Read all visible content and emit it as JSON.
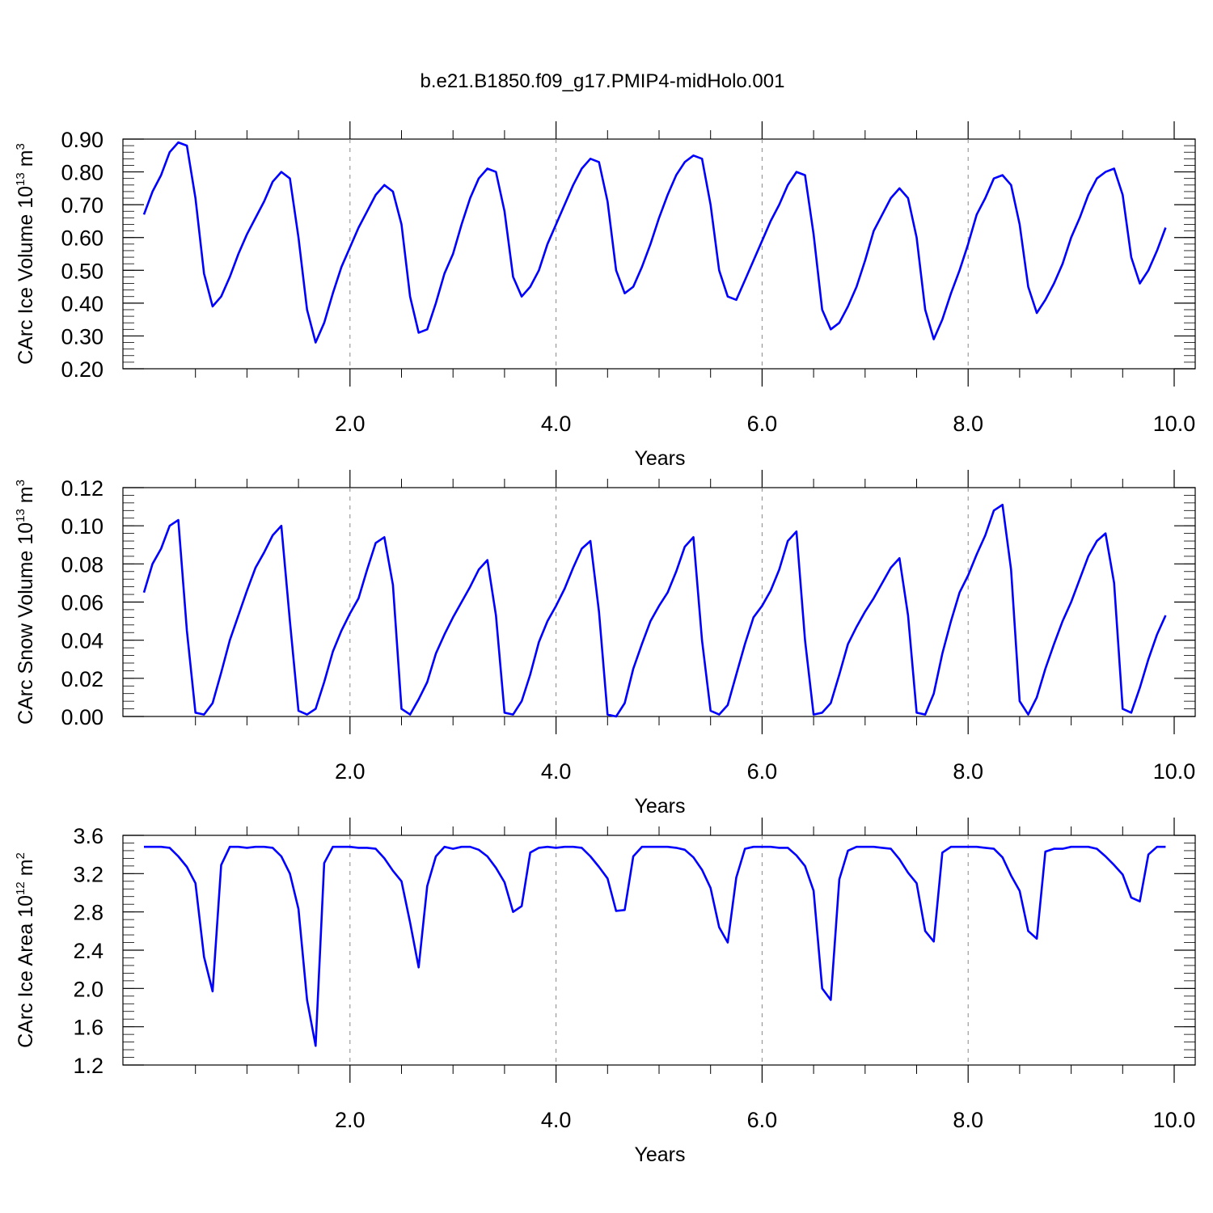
{
  "title": "b.e21.B1850.f09_g17.PMIP4-midHolo.001",
  "chart_data": [
    {
      "type": "line",
      "ylabel_main": "CArc Ice Volume 10",
      "ylabel_exp": "13",
      "ylabel_unit": " m",
      "ylabel_unit_exp": "3",
      "xlabel": "Years",
      "xlim": [
        0,
        10
      ],
      "ylim": [
        0.2,
        0.9
      ],
      "xticks": [
        2.0,
        4.0,
        6.0,
        8.0,
        10.0
      ],
      "xtick_labels": [
        "2.0",
        "4.0",
        "6.0",
        "8.0",
        "10.0"
      ],
      "yticks": [
        0.2,
        0.3,
        0.4,
        0.5,
        0.6,
        0.7,
        0.8,
        0.9
      ],
      "ytick_labels": [
        "0.20",
        "0.30",
        "0.40",
        "0.50",
        "0.60",
        "0.70",
        "0.80",
        "0.90"
      ],
      "ytick_minor_step": 0.02,
      "color": "#0000ff",
      "x_start": 0.0,
      "x_step": 0.0833333,
      "values": [
        0.67,
        0.74,
        0.79,
        0.86,
        0.89,
        0.88,
        0.72,
        0.49,
        0.39,
        0.42,
        0.48,
        0.55,
        0.61,
        0.66,
        0.71,
        0.77,
        0.8,
        0.78,
        0.6,
        0.38,
        0.28,
        0.34,
        0.43,
        0.51,
        0.57,
        0.63,
        0.68,
        0.73,
        0.76,
        0.74,
        0.64,
        0.42,
        0.31,
        0.32,
        0.4,
        0.49,
        0.55,
        0.64,
        0.72,
        0.78,
        0.81,
        0.8,
        0.68,
        0.48,
        0.42,
        0.45,
        0.5,
        0.58,
        0.64,
        0.7,
        0.76,
        0.81,
        0.84,
        0.83,
        0.71,
        0.5,
        0.43,
        0.45,
        0.51,
        0.58,
        0.66,
        0.73,
        0.79,
        0.83,
        0.85,
        0.84,
        0.7,
        0.5,
        0.42,
        0.41,
        0.47,
        0.53,
        0.59,
        0.65,
        0.7,
        0.76,
        0.8,
        0.79,
        0.61,
        0.38,
        0.32,
        0.34,
        0.39,
        0.45,
        0.53,
        0.62,
        0.67,
        0.72,
        0.75,
        0.72,
        0.6,
        0.38,
        0.29,
        0.35,
        0.43,
        0.5,
        0.58,
        0.67,
        0.72,
        0.78,
        0.79,
        0.76,
        0.64,
        0.45,
        0.37,
        0.41,
        0.46,
        0.52,
        0.6,
        0.66,
        0.73,
        0.78,
        0.8,
        0.81,
        0.73,
        0.54,
        0.46,
        0.5,
        0.56,
        0.63
      ]
    },
    {
      "type": "line",
      "ylabel_main": "CArc Snow Volume 10",
      "ylabel_exp": "13",
      "ylabel_unit": " m",
      "ylabel_unit_exp": "3",
      "xlabel": "Years",
      "xlim": [
        0,
        10
      ],
      "ylim": [
        0.0,
        0.12
      ],
      "xticks": [
        2.0,
        4.0,
        6.0,
        8.0,
        10.0
      ],
      "xtick_labels": [
        "2.0",
        "4.0",
        "6.0",
        "8.0",
        "10.0"
      ],
      "yticks": [
        0.0,
        0.02,
        0.04,
        0.06,
        0.08,
        0.1,
        0.12
      ],
      "ytick_labels": [
        "0.00",
        "0.02",
        "0.04",
        "0.06",
        "0.08",
        "0.10",
        "0.12"
      ],
      "ytick_minor_step": 0.004,
      "color": "#0000ff",
      "x_start": 0.0,
      "x_step": 0.0833333,
      "values": [
        0.065,
        0.08,
        0.088,
        0.1,
        0.103,
        0.045,
        0.002,
        0.001,
        0.007,
        0.023,
        0.04,
        0.053,
        0.066,
        0.078,
        0.086,
        0.095,
        0.1,
        0.05,
        0.003,
        0.001,
        0.004,
        0.018,
        0.034,
        0.045,
        0.054,
        0.062,
        0.077,
        0.091,
        0.094,
        0.069,
        0.004,
        0.001,
        0.009,
        0.018,
        0.033,
        0.043,
        0.052,
        0.06,
        0.068,
        0.077,
        0.082,
        0.053,
        0.002,
        0.001,
        0.008,
        0.022,
        0.039,
        0.05,
        0.058,
        0.067,
        0.078,
        0.088,
        0.092,
        0.055,
        0.001,
        0.0,
        0.007,
        0.025,
        0.038,
        0.05,
        0.058,
        0.065,
        0.076,
        0.089,
        0.094,
        0.04,
        0.003,
        0.001,
        0.006,
        0.022,
        0.038,
        0.052,
        0.058,
        0.066,
        0.077,
        0.092,
        0.097,
        0.04,
        0.001,
        0.002,
        0.007,
        0.022,
        0.038,
        0.047,
        0.055,
        0.062,
        0.07,
        0.078,
        0.083,
        0.053,
        0.002,
        0.001,
        0.012,
        0.033,
        0.05,
        0.065,
        0.074,
        0.085,
        0.095,
        0.108,
        0.111,
        0.077,
        0.008,
        0.001,
        0.01,
        0.025,
        0.038,
        0.05,
        0.06,
        0.072,
        0.084,
        0.092,
        0.096,
        0.07,
        0.004,
        0.002,
        0.015,
        0.03,
        0.043,
        0.053
      ]
    },
    {
      "type": "line",
      "ylabel_main": "CArc Ice Area 10",
      "ylabel_exp": "12",
      "ylabel_unit": " m",
      "ylabel_unit_exp": "2",
      "xlabel": "Years",
      "xlim": [
        0,
        10
      ],
      "ylim": [
        1.2,
        3.6
      ],
      "xticks": [
        2.0,
        4.0,
        6.0,
        8.0,
        10.0
      ],
      "xtick_labels": [
        "2.0",
        "4.0",
        "6.0",
        "8.0",
        "10.0"
      ],
      "yticks": [
        1.2,
        1.6,
        2.0,
        2.4,
        2.8,
        3.2,
        3.6
      ],
      "ytick_labels": [
        "1.2",
        "1.6",
        "2.0",
        "2.4",
        "2.8",
        "3.2",
        "3.6"
      ],
      "ytick_minor_step": 0.08,
      "color": "#0000ff",
      "x_start": 0.0,
      "x_step": 0.0833333,
      "values": [
        3.48,
        3.48,
        3.48,
        3.47,
        3.38,
        3.27,
        3.1,
        2.33,
        1.97,
        3.29,
        3.48,
        3.48,
        3.47,
        3.48,
        3.48,
        3.47,
        3.38,
        3.2,
        2.83,
        1.88,
        1.4,
        3.31,
        3.48,
        3.48,
        3.48,
        3.47,
        3.47,
        3.46,
        3.36,
        3.23,
        3.12,
        2.69,
        2.22,
        3.07,
        3.38,
        3.48,
        3.46,
        3.48,
        3.48,
        3.45,
        3.38,
        3.26,
        3.11,
        2.8,
        2.86,
        3.42,
        3.47,
        3.48,
        3.47,
        3.48,
        3.48,
        3.47,
        3.38,
        3.27,
        3.15,
        2.81,
        2.82,
        3.38,
        3.48,
        3.48,
        3.48,
        3.48,
        3.47,
        3.45,
        3.37,
        3.24,
        3.05,
        2.64,
        2.48,
        3.16,
        3.46,
        3.48,
        3.48,
        3.48,
        3.47,
        3.47,
        3.39,
        3.28,
        3.02,
        2.0,
        1.88,
        3.14,
        3.44,
        3.48,
        3.48,
        3.48,
        3.47,
        3.46,
        3.35,
        3.21,
        3.1,
        2.6,
        2.49,
        3.42,
        3.48,
        3.48,
        3.48,
        3.48,
        3.47,
        3.46,
        3.37,
        3.18,
        3.02,
        2.6,
        2.52,
        3.43,
        3.46,
        3.46,
        3.48,
        3.48,
        3.48,
        3.46,
        3.38,
        3.29,
        3.19,
        2.95,
        2.91,
        3.4,
        3.48,
        3.48
      ]
    }
  ]
}
